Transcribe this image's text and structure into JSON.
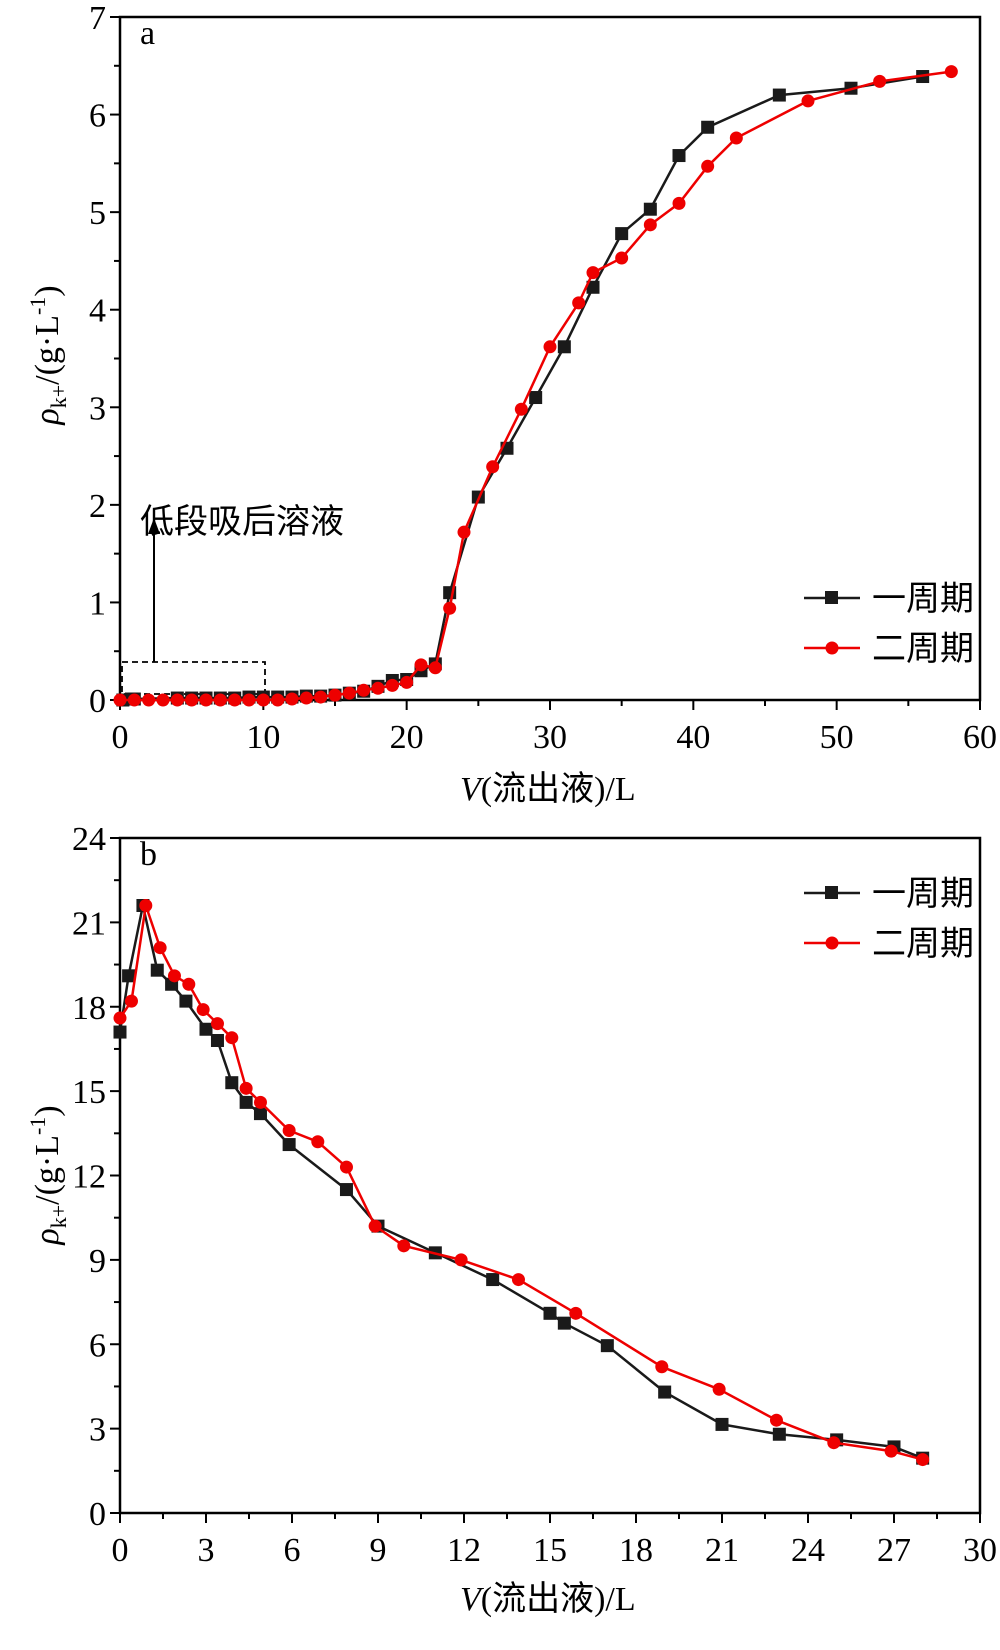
{
  "chart_data": [
    {
      "type": "line",
      "panel_label": "a",
      "xlabel_var": "V",
      "xlabel_rest": "(流出液)/L",
      "ylabel_base": "ρ",
      "ylabel_sub": "k+",
      "ylabel_unit": "/(g·L",
      "ylabel_sup": "-1",
      "ylabel_close": ")",
      "xlim": [
        0,
        60
      ],
      "ylim": [
        0,
        7
      ],
      "xticks": [
        "0",
        "10",
        "20",
        "30",
        "40",
        "50",
        "60"
      ],
      "yticks": [
        "0",
        "1",
        "2",
        "3",
        "4",
        "5",
        "6",
        "7"
      ],
      "legend_position": "right",
      "annotation": "低段吸后溶液",
      "series": [
        {
          "name": "一周期",
          "color": "#1a1a1a",
          "marker": "square",
          "x": [
            0.2,
            0.8,
            1,
            4,
            5,
            6,
            7,
            8,
            9,
            10,
            11,
            12,
            13,
            14,
            15,
            16,
            17,
            18,
            19,
            20,
            21,
            22,
            23,
            25,
            27,
            29,
            31,
            33,
            35,
            37,
            39,
            41,
            46,
            51,
            56
          ],
          "y": [
            0.0,
            0.01,
            0.01,
            0.02,
            0.02,
            0.02,
            0.02,
            0.02,
            0.03,
            0.03,
            0.03,
            0.03,
            0.04,
            0.04,
            0.05,
            0.07,
            0.09,
            0.14,
            0.2,
            0.21,
            0.3,
            0.37,
            1.1,
            2.08,
            2.58,
            3.1,
            3.62,
            4.23,
            4.78,
            5.03,
            5.58,
            5.87,
            6.2,
            6.27,
            6.39
          ]
        },
        {
          "name": "二周期",
          "color": "#ee0000",
          "marker": "circle",
          "x": [
            0,
            1,
            2,
            3,
            4,
            5,
            6,
            7,
            8,
            9,
            10,
            11,
            12,
            13,
            14,
            15,
            16,
            17,
            18,
            19,
            20,
            21,
            22,
            23,
            24,
            26,
            28,
            30,
            32,
            33,
            35,
            37,
            39,
            41,
            43,
            48,
            53,
            58
          ],
          "y": [
            0.0,
            0.0,
            0.0,
            0.0,
            0.0,
            0.0,
            0.0,
            0.0,
            0.0,
            0.0,
            0.0,
            0.0,
            0.01,
            0.02,
            0.03,
            0.05,
            0.07,
            0.1,
            0.12,
            0.15,
            0.18,
            0.36,
            0.33,
            0.94,
            1.72,
            2.39,
            2.98,
            3.62,
            4.07,
            4.38,
            4.53,
            4.87,
            5.09,
            5.47,
            5.76,
            6.14,
            6.34,
            6.44
          ]
        }
      ]
    },
    {
      "type": "line",
      "panel_label": "b",
      "xlabel_var": "V",
      "xlabel_rest": "(流出液)/L",
      "ylabel_base": "ρ",
      "ylabel_sub": "k+",
      "ylabel_unit": "/(g·L",
      "ylabel_sup": "-1",
      "ylabel_close": ")",
      "xlim": [
        0,
        30
      ],
      "ylim": [
        0,
        24
      ],
      "xticks": [
        "0",
        "3",
        "6",
        "9",
        "12",
        "15",
        "18",
        "21",
        "24",
        "27",
        "30"
      ],
      "yticks": [
        "0",
        "3",
        "6",
        "9",
        "12",
        "15",
        "18",
        "21",
        "24"
      ],
      "legend_position": "top-right",
      "series": [
        {
          "name": "一周期",
          "color": "#1a1a1a",
          "marker": "square",
          "x": [
            0,
            0.3,
            0.8,
            1.3,
            1.8,
            2.3,
            3.0,
            3.4,
            3.9,
            4.4,
            4.9,
            5.9,
            7.9,
            9.0,
            11.0,
            13.0,
            15.0,
            15.5,
            17.0,
            19.0,
            21.0,
            23.0,
            25.0,
            27.0,
            28.0
          ],
          "y": [
            17.1,
            19.1,
            21.6,
            19.3,
            18.8,
            18.2,
            17.2,
            16.8,
            15.3,
            14.6,
            14.2,
            13.1,
            11.5,
            10.2,
            9.25,
            8.3,
            7.1,
            6.75,
            5.95,
            4.3,
            3.15,
            2.8,
            2.6,
            2.35,
            1.95
          ]
        },
        {
          "name": "二周期",
          "color": "#ee0000",
          "marker": "circle",
          "x": [
            0,
            0.4,
            0.9,
            1.4,
            1.9,
            2.4,
            2.9,
            3.4,
            3.9,
            4.4,
            4.9,
            5.9,
            6.9,
            7.9,
            8.9,
            9.9,
            11.9,
            13.9,
            15.9,
            18.9,
            20.9,
            22.9,
            24.9,
            26.9,
            28.0
          ],
          "y": [
            17.6,
            18.2,
            21.6,
            20.1,
            19.1,
            18.8,
            17.9,
            17.4,
            16.9,
            15.1,
            14.6,
            13.6,
            13.2,
            12.3,
            10.2,
            9.5,
            9.0,
            8.3,
            7.1,
            5.2,
            4.4,
            3.3,
            2.5,
            2.2,
            1.9
          ]
        }
      ]
    }
  ]
}
